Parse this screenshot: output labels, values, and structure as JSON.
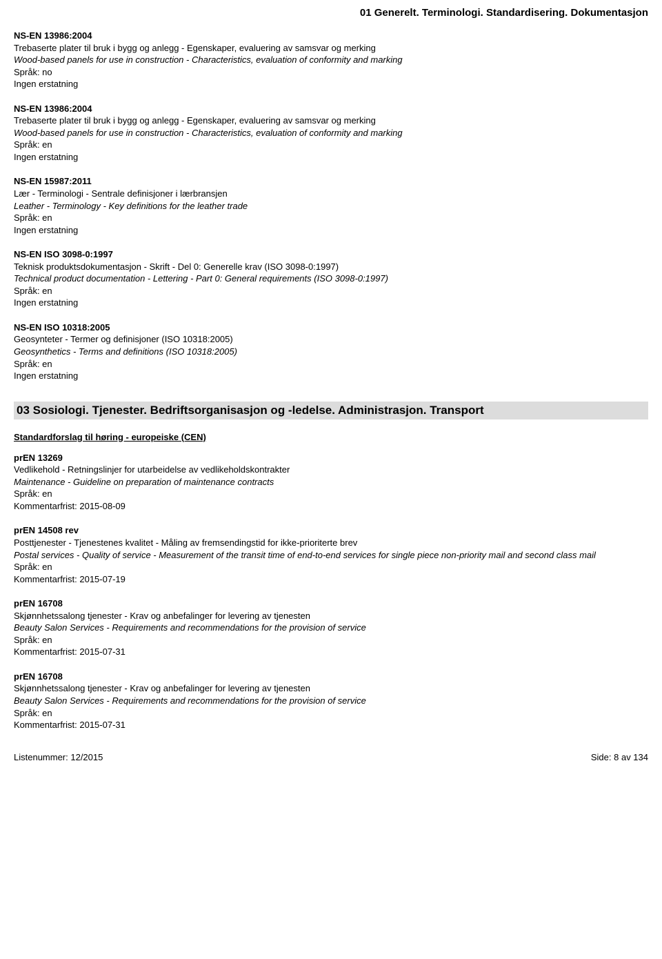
{
  "header": {
    "title": "01  Generelt. Terminologi. Standardisering. Dokumentasjon"
  },
  "section1": {
    "entries": [
      {
        "code": "NS-EN 13986:2004",
        "title_no": "Trebaserte plater til bruk i bygg og anlegg - Egenskaper, evaluering av samsvar og merking",
        "title_en": "Wood-based panels for use in construction - Characteristics, evaluation of conformity and marking",
        "lang": "Språk: no",
        "note": "Ingen erstatning"
      },
      {
        "code": "NS-EN 13986:2004",
        "title_no": "Trebaserte plater til bruk i bygg og anlegg - Egenskaper, evaluering av samsvar og merking",
        "title_en": "Wood-based panels for use in construction - Characteristics, evaluation of conformity and marking",
        "lang": "Språk: en",
        "note": "Ingen erstatning"
      },
      {
        "code": "NS-EN 15987:2011",
        "title_no": "Lær - Terminologi - Sentrale definisjoner i lærbransjen",
        "title_en": "Leather - Terminology - Key definitions for the leather trade",
        "lang": "Språk: en",
        "note": "Ingen erstatning"
      },
      {
        "code": "NS-EN ISO 3098-0:1997",
        "title_no": "Teknisk produktsdokumentasjon - Skrift - Del 0: Generelle krav (ISO 3098-0:1997)",
        "title_en": "Technical product documentation - Lettering - Part 0: General requirements (ISO 3098-0:1997)",
        "lang": "Språk: en",
        "note": "Ingen erstatning"
      },
      {
        "code": "NS-EN ISO 10318:2005",
        "title_no": "Geosynteter - Termer og definisjoner (ISO 10318:2005)",
        "title_en": "Geosynthetics - Terms and definitions (ISO 10318:2005)",
        "lang": "Språk: en",
        "note": "Ingen erstatning"
      }
    ]
  },
  "section2": {
    "heading": "03  Sosiologi. Tjenester. Bedriftsorganisasjon og -ledelse. Administrasjon. Transport",
    "subheading": "Standardforslag til høring - europeiske (CEN)",
    "entries": [
      {
        "code": "prEN 13269",
        "title_no": "Vedlikehold - Retningslinjer for utarbeidelse av vedlikeholdskontrakter",
        "title_en": "Maintenance - Guideline on preparation of maintenance contracts",
        "lang": "Språk: en",
        "note": "Kommentarfrist: 2015-08-09"
      },
      {
        "code": "prEN 14508 rev",
        "title_no": "Posttjenester - Tjenestenes kvalitet - Måling av fremsendingstid for ikke-prioriterte brev",
        "title_en": "Postal services - Quality of service - Measurement of the transit time of end-to-end services for single piece non-priority mail and second class mail",
        "lang": "Språk: en",
        "note": "Kommentarfrist: 2015-07-19"
      },
      {
        "code": "prEN 16708",
        "title_no": "Skjønnhetssalong tjenester - Krav og anbefalinger for levering av tjenesten",
        "title_en": "Beauty Salon Services - Requirements and recommendations for the provision of service",
        "lang": "Språk: en",
        "note": "Kommentarfrist: 2015-07-31"
      },
      {
        "code": "prEN 16708",
        "title_no": "Skjønnhetssalong tjenester - Krav og anbefalinger for levering av tjenesten",
        "title_en": "Beauty Salon Services - Requirements and recommendations for the provision of service",
        "lang": "Språk: en",
        "note": "Kommentarfrist: 2015-07-31"
      }
    ]
  },
  "footer": {
    "left": "Listenummer: 12/2015",
    "right": "Side: 8 av 134"
  }
}
